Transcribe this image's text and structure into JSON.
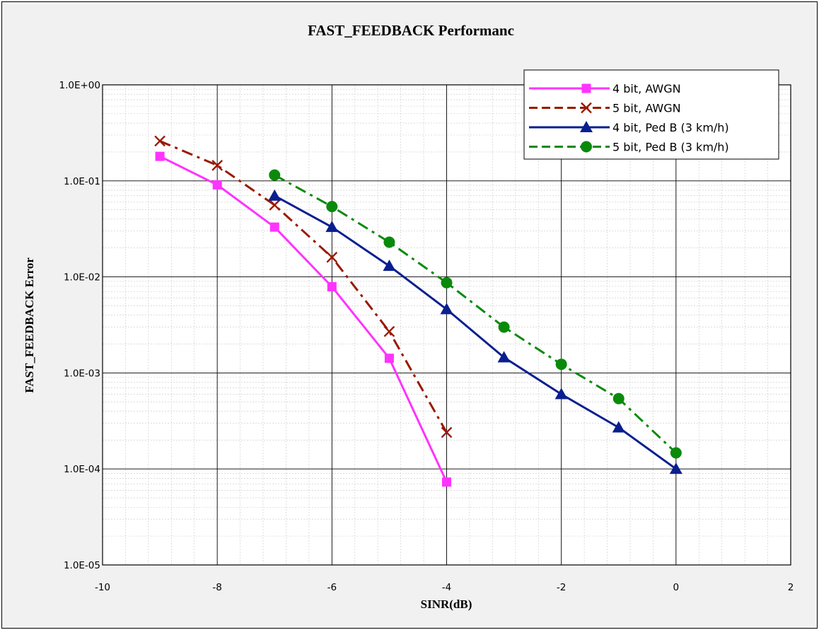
{
  "chart_data": {
    "type": "line",
    "title": "FAST_FEEDBACK Performanc",
    "xlabel": "SINR(dB)",
    "ylabel": "FAST_FEEDBACK Error",
    "xlim": [
      -10,
      2
    ],
    "ylim": [
      1e-05,
      1
    ],
    "y_scale": "log",
    "x_ticks": [
      -10,
      -8,
      -6,
      -4,
      -2,
      0,
      2
    ],
    "x_tick_labels": [
      "-10",
      "-8",
      "-6",
      "-4",
      "-2",
      "0",
      "2"
    ],
    "y_ticks": [
      1e-05,
      0.0001,
      0.001,
      0.01,
      0.1,
      1
    ],
    "y_tick_labels": [
      "1.0E-05",
      "1.0E-04",
      "1.0E-03",
      "1.0E-02",
      "1.0E-01",
      "1.0E+00"
    ],
    "grid": true,
    "legend_position": "top-right",
    "series": [
      {
        "name": "4 bit, AWGN",
        "color": "#ff33ff",
        "line_style": "solid",
        "marker": "square",
        "x": [
          -9,
          -8,
          -7,
          -6,
          -5,
          -4
        ],
        "y": [
          0.18,
          0.091,
          0.033,
          0.0079,
          0.00142,
          7.3e-05
        ]
      },
      {
        "name": "5 bit, AWGN",
        "color": "#991a00",
        "line_style": "dash-dot",
        "marker": "x",
        "x": [
          -9,
          -8,
          -7,
          -6,
          -5,
          -4
        ],
        "y": [
          0.26,
          0.145,
          0.056,
          0.016,
          0.0027,
          0.00024
        ]
      },
      {
        "name": "4 bit, Ped B (3 km/h)",
        "color": "#0a1f8f",
        "line_style": "solid",
        "marker": "triangle",
        "x": [
          -7,
          -6,
          -5,
          -4,
          -3,
          -2,
          -1,
          0
        ],
        "y": [
          0.07,
          0.033,
          0.013,
          0.0046,
          0.00145,
          0.0006,
          0.00027,
          0.0001
        ]
      },
      {
        "name": "5 bit, Ped B (3 km/h)",
        "color": "#0a8a0a",
        "line_style": "dash-dot",
        "marker": "circle",
        "x": [
          -7,
          -6,
          -5,
          -4,
          -3,
          -2,
          -1,
          0
        ],
        "y": [
          0.115,
          0.054,
          0.023,
          0.0087,
          0.003,
          0.00123,
          0.00054,
          0.000147
        ]
      }
    ]
  }
}
